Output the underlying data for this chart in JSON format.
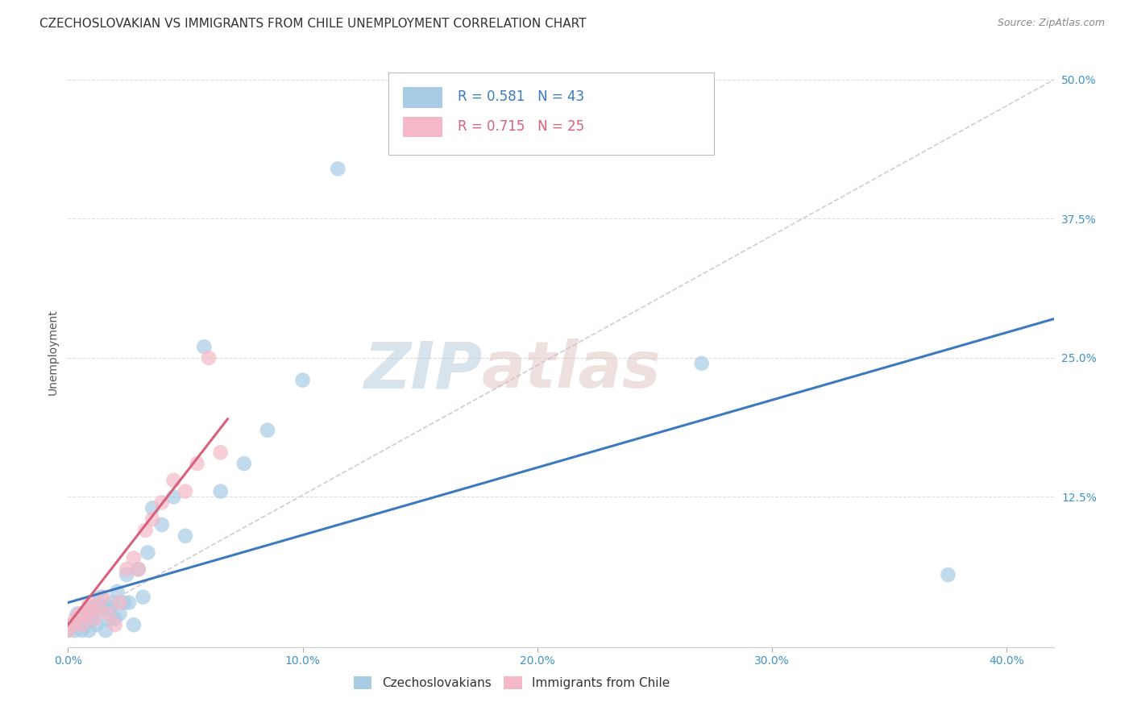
{
  "title": "CZECHOSLOVAKIAN VS IMMIGRANTS FROM CHILE UNEMPLOYMENT CORRELATION CHART",
  "source": "Source: ZipAtlas.com",
  "ylabel": "Unemployment",
  "watermark_zip": "ZIP",
  "watermark_atlas": "atlas",
  "xlim": [
    0.0,
    0.42
  ],
  "ylim": [
    -0.01,
    0.52
  ],
  "ytick_values": [
    0.125,
    0.25,
    0.375,
    0.5
  ],
  "ytick_labels": [
    "12.5%",
    "25.0%",
    "37.5%",
    "50.0%"
  ],
  "xtick_values": [
    0.0,
    0.1,
    0.2,
    0.3,
    0.4
  ],
  "xtick_labels": [
    "0.0%",
    "10.0%",
    "20.0%",
    "30.0%",
    "40.0%"
  ],
  "legend1_label": "R = 0.581   N = 43",
  "legend2_label": "R = 0.715   N = 25",
  "legend_bottom1": "Czechoslovakians",
  "legend_bottom2": "Immigrants from Chile",
  "blue_color": "#a8cce4",
  "pink_color": "#f4b8c8",
  "line_blue": "#3c7abf",
  "line_pink": "#d9607a",
  "dashed_color": "#ccbbcc",
  "background_color": "#ffffff",
  "grid_color": "#dddddd",
  "blue_scatter_x": [
    0.0,
    0.002,
    0.003,
    0.004,
    0.005,
    0.006,
    0.007,
    0.007,
    0.008,
    0.009,
    0.01,
    0.01,
    0.011,
    0.012,
    0.013,
    0.014,
    0.015,
    0.016,
    0.017,
    0.018,
    0.019,
    0.02,
    0.021,
    0.022,
    0.024,
    0.025,
    0.026,
    0.028,
    0.03,
    0.032,
    0.034,
    0.036,
    0.04,
    0.045,
    0.05,
    0.058,
    0.065,
    0.075,
    0.085,
    0.1,
    0.115,
    0.27,
    0.375
  ],
  "blue_scatter_y": [
    0.005,
    0.01,
    0.005,
    0.02,
    0.015,
    0.005,
    0.01,
    0.015,
    0.02,
    0.005,
    0.015,
    0.025,
    0.02,
    0.01,
    0.03,
    0.035,
    0.025,
    0.005,
    0.015,
    0.025,
    0.03,
    0.015,
    0.04,
    0.02,
    0.03,
    0.055,
    0.03,
    0.01,
    0.06,
    0.035,
    0.075,
    0.115,
    0.1,
    0.125,
    0.09,
    0.26,
    0.13,
    0.155,
    0.185,
    0.23,
    0.42,
    0.245,
    0.055
  ],
  "pink_scatter_x": [
    0.0,
    0.002,
    0.003,
    0.005,
    0.006,
    0.008,
    0.009,
    0.01,
    0.011,
    0.013,
    0.015,
    0.017,
    0.02,
    0.022,
    0.025,
    0.028,
    0.03,
    0.033,
    0.036,
    0.04,
    0.045,
    0.05,
    0.055,
    0.06,
    0.065
  ],
  "pink_scatter_y": [
    0.005,
    0.01,
    0.015,
    0.02,
    0.01,
    0.02,
    0.03,
    0.025,
    0.015,
    0.025,
    0.035,
    0.02,
    0.01,
    0.03,
    0.06,
    0.07,
    0.06,
    0.095,
    0.105,
    0.12,
    0.14,
    0.13,
    0.155,
    0.25,
    0.165
  ],
  "blue_line_x": [
    0.0,
    0.42
  ],
  "blue_line_y": [
    0.03,
    0.285
  ],
  "pink_line_x": [
    0.0,
    0.068
  ],
  "pink_line_y": [
    0.01,
    0.195
  ],
  "dashed_line_x": [
    0.0,
    0.42
  ],
  "dashed_line_y": [
    0.01,
    0.5
  ],
  "title_fontsize": 11,
  "axis_label_fontsize": 10,
  "tick_fontsize": 10,
  "legend_fontsize": 12,
  "source_fontsize": 9
}
